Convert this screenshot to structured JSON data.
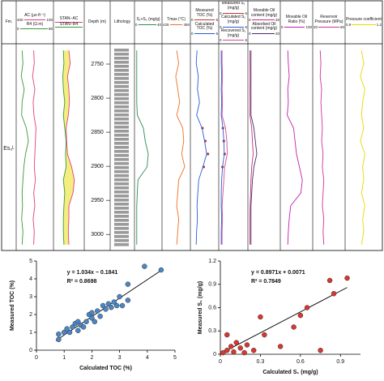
{
  "chart_data": [
    {
      "type": "well-log",
      "formation_label": "Fm.",
      "formation": "Es₃ᴸ",
      "depth_label": "Depth (m)",
      "lithology_label": "Lithology",
      "ylim": [
        2725,
        3020
      ],
      "yticks": [
        2750,
        2800,
        2850,
        2900,
        2950,
        3000
      ],
      "depths": [
        2730,
        2749,
        2768,
        2787,
        2806,
        2825,
        2844,
        2863,
        2882,
        2901,
        2920,
        2939,
        2958,
        2977,
        2996,
        3015
      ],
      "tracks": [
        {
          "curves": [
            {
              "name": "AC (μs·ft⁻¹)",
              "color": "#e0407a",
              "xlim": [
                400,
                100
              ],
              "values": [
                260,
                255,
                270,
                250,
                265,
                258,
                240,
                245,
                250,
                255,
                245,
                260,
                250,
                265,
                255,
                260
              ]
            },
            {
              "name": "R4 (Ω.m)",
              "color": "#3a9a3a",
              "xlim": [
                0,
                80
              ],
              "values": [
                10,
                12,
                8,
                15,
                10,
                9,
                20,
                25,
                18,
                14,
                12,
                10,
                11,
                9,
                12,
                10
              ]
            }
          ]
        },
        {
          "fill_between": "#f4ee80",
          "curves": [
            {
              "name": "STAN−AC",
              "color": "#e0407a",
              "xlim": [
                0,
                1
              ],
              "values": [
                0.5,
                0.55,
                0.45,
                0.5,
                0.52,
                0.48,
                0.4,
                0.42,
                0.45,
                0.6,
                0.7,
                0.65,
                0.5,
                0.5,
                0.48,
                0.5
              ]
            },
            {
              "name": "STAN−R4",
              "color": "#3a9a3a",
              "xlim": [
                0,
                1
              ],
              "values": [
                0.3,
                0.32,
                0.28,
                0.3,
                0.35,
                0.3,
                0.35,
                0.4,
                0.38,
                0.4,
                0.3,
                0.35,
                0.32,
                0.3,
                0.3,
                0.32
              ]
            }
          ]
        },
        {
          "curves": [
            {
              "name": "S₁+S₂ (mg/g)",
              "color": "#2e8b57",
              "xlim": [
                0,
                40
              ],
              "values": [
                1,
                1,
                1,
                1,
                1,
                2,
                12,
                15,
                20,
                18,
                3,
                2,
                1,
                1,
                1,
                1
              ]
            }
          ]
        },
        {
          "curves": [
            {
              "name": "Tmax (°C)",
              "color": "#f07020",
              "xlim": [
                425,
                450
              ],
              "values": [
                438,
                440,
                437,
                439,
                441,
                438,
                444,
                445,
                443,
                446,
                440,
                439,
                438,
                440,
                439,
                438
              ]
            }
          ]
        },
        {
          "curves": [
            {
              "name": "Measured TOC (%)",
              "color": "#c0392b",
              "xlim": [
                0,
                6
              ],
              "marker": "dot",
              "values": [
                null,
                null,
                null,
                null,
                null,
                null,
                2.5,
                3.2,
                3.8,
                2.8,
                null,
                null,
                null,
                null,
                null,
                null
              ]
            },
            {
              "name": "Calculated TOC (%)",
              "color": "#2a5bd7",
              "xlim": [
                0,
                6
              ],
              "values": [
                1.2,
                1.0,
                1.5,
                1.3,
                1.8,
                1.1,
                2.4,
                3.0,
                3.5,
                2.6,
                1.6,
                1.4,
                1.2,
                1.3,
                1.1,
                1.0
              ]
            }
          ]
        },
        {
          "curves": [
            {
              "name": "Measured S₁ (mg/g)",
              "color": "#c0392b",
              "xlim": [
                0,
                6
              ],
              "marker": "dot",
              "values": [
                null,
                null,
                null,
                null,
                null,
                null,
                0.6,
                0.8,
                1.0,
                0.5,
                null,
                null,
                null,
                null,
                null,
                null
              ]
            },
            {
              "name": "Calculated S₁ (mg/g)",
              "color": "#2a5bd7",
              "xlim": [
                0,
                6
              ],
              "values": [
                0.2,
                0.2,
                0.3,
                0.2,
                0.3,
                0.2,
                0.6,
                0.8,
                0.9,
                0.5,
                0.3,
                0.2,
                0.2,
                0.3,
                0.2,
                0.2
              ]
            },
            {
              "name": "Recovered S₁ (mg/g)",
              "color": "#d04a9a",
              "xlim": [
                0,
                6
              ],
              "values": [
                0.4,
                0.4,
                0.5,
                0.4,
                0.5,
                0.4,
                1.2,
                1.5,
                1.6,
                1.0,
                0.8,
                0.6,
                0.4,
                0.5,
                0.4,
                0.4
              ]
            }
          ]
        },
        {
          "curves": [
            {
              "name": "Movable Oil content (mg/g)",
              "color": "#c0307a",
              "xlim": [
                0,
                20
              ],
              "values": [
                0.3,
                0.3,
                0.4,
                0.3,
                0.4,
                0.3,
                1.5,
                2,
                2.5,
                1.5,
                1,
                0.8,
                0.4,
                0.3,
                0.3,
                0.3
              ]
            },
            {
              "name": "Absorbed Oil content (mg/g)",
              "color": "#4b2a6a",
              "xlim": [
                0,
                20
              ],
              "values": [
                1,
                1,
                1,
                1,
                1,
                1,
                3,
                4,
                5,
                3,
                2,
                1.5,
                1,
                1,
                1,
                1
              ]
            }
          ]
        },
        {
          "curves": [
            {
              "name": "Movable Oil Ratio (%)",
              "color": "#c020b0",
              "xlim": [
                0,
                100
              ],
              "values": [
                20,
                22,
                25,
                20,
                22,
                18,
                40,
                45,
                50,
                60,
                70,
                65,
                30,
                25,
                22,
                20
              ]
            }
          ]
        },
        {
          "curves": [
            {
              "name": "Reservoir Pressure (MPa)",
              "color": "#d0309a",
              "xlim": [
                20,
                60
              ],
              "values": [
                28,
                29,
                28,
                30,
                29,
                30,
                31,
                30,
                32,
                31,
                33,
                32,
                31,
                33,
                32,
                33
              ]
            }
          ]
        },
        {
          "curves": [
            {
              "name": "Pressure coefficient",
              "color": "#e6d800",
              "xlim": [
                0.9,
                1.2
              ],
              "values": [
                1.03,
                1.05,
                1.02,
                1.06,
                1.04,
                1.03,
                1.05,
                1.02,
                1.06,
                1.04,
                1.05,
                1.03,
                1.06,
                1.04,
                1.05,
                1.03
              ]
            }
          ]
        }
      ]
    },
    {
      "type": "scatter",
      "y_label": "Measured TOC (%)",
      "x_label": "Calculated TOC  (%)",
      "color": "#4a86c5",
      "equation": "y = 1.034x − 0.1841",
      "r2": "R² = 0.8698",
      "trendline": {
        "slope": 1.034,
        "intercept": -0.1841,
        "x": [
          0.7,
          4.5
        ]
      },
      "xlim": [
        0,
        5
      ],
      "xticks": [
        0,
        1,
        2,
        3,
        4,
        5
      ],
      "ylim": [
        0,
        5
      ],
      "yticks": [
        0,
        1,
        2,
        3,
        4,
        5
      ],
      "x": [
        0.8,
        0.8,
        1.0,
        1.1,
        1.2,
        1.3,
        1.4,
        1.5,
        1.5,
        1.6,
        1.7,
        1.8,
        1.9,
        2.0,
        2.0,
        2.1,
        2.2,
        2.3,
        2.4,
        2.5,
        2.6,
        2.7,
        2.8,
        2.9,
        3.0,
        3.1,
        3.3,
        3.3,
        3.9,
        4.5
      ],
      "y": [
        0.6,
        0.9,
        1.0,
        1.2,
        1.0,
        1.3,
        1.5,
        1.1,
        1.6,
        1.4,
        1.3,
        1.6,
        2.0,
        1.8,
        2.1,
        1.6,
        2.2,
        1.9,
        2.5,
        2.3,
        2.6,
        2.4,
        2.7,
        2.5,
        3.0,
        2.5,
        3.7,
        2.8,
        4.7,
        4.5
      ]
    },
    {
      "type": "scatter",
      "y_label": "Measured S₁ (mg/g)",
      "x_label": "Calculated S₁ (mg/g)",
      "color": "#d8362f",
      "equation": "y = 0.8971x + 0.0071",
      "r2": "R² = 0.7849",
      "trendline": {
        "slope": 0.8971,
        "intercept": 0.0071,
        "x": [
          0,
          0.95
        ]
      },
      "xlim": [
        0,
        1.05
      ],
      "xticks": [
        0,
        0.3,
        0.6,
        0.9
      ],
      "ylim": [
        0,
        1.2
      ],
      "yticks": [
        0,
        0.3,
        0.6,
        0.9,
        1.2
      ],
      "x": [
        0.02,
        0.05,
        0.08,
        0.1,
        0.12,
        0.15,
        0.18,
        0.2,
        0.25,
        0.3,
        0.33,
        0.45,
        0.55,
        0.6,
        0.65,
        0.75,
        0.82,
        0.85,
        0.95,
        0.05
      ],
      "y": [
        0.02,
        0.05,
        0.1,
        0.03,
        0.15,
        0.08,
        0.02,
        0.12,
        0.05,
        0.48,
        0.25,
        0.1,
        0.35,
        0.5,
        0.6,
        0.05,
        0.95,
        0.78,
        0.98,
        0.25
      ]
    }
  ]
}
